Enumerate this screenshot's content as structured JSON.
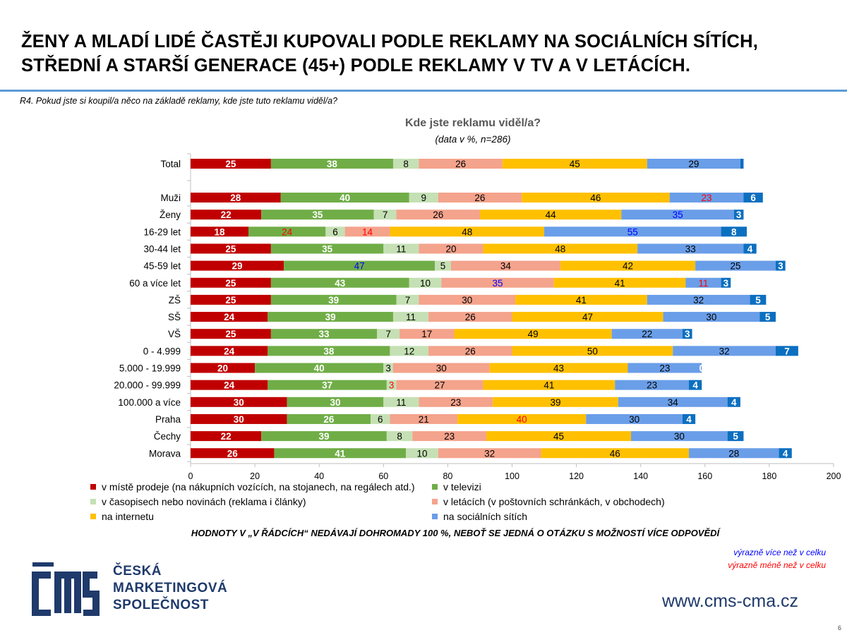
{
  "headline": {
    "line1": "ŽENY A MLADÍ LIDÉ ČASTĚJI KUPOVALI PODLE REKLAMY NA SOCIÁLNÍCH SÍTÍCH,",
    "line2": "STŘEDNÍ A STARŠÍ GENERACE (45+) PODLE REKLAMY V TV A V LETÁCÍCH."
  },
  "question": "R4. Pokud jste si koupil/a něco na základě reklamy, kde jste tuto reklamu viděl/a?",
  "chart_data": {
    "type": "bar",
    "orientation": "horizontal",
    "stacked": true,
    "title": "Kde jste reklamu viděl/a?",
    "subtitle": "(data v %, n=286)",
    "xlim": [
      0,
      200
    ],
    "x_ticks": [
      0,
      20,
      40,
      60,
      80,
      100,
      120,
      140,
      160,
      180,
      200
    ],
    "categories": [
      "Total",
      "Muži",
      "Ženy",
      "16-29 let",
      "30-44 let",
      "45-59 let",
      "60 a více let",
      "ZŠ",
      "SŠ",
      "VŠ",
      "0 - 4.999",
      "5.000 - 19.999",
      "20.000 - 99.999",
      "100.000 a více",
      "Praha",
      "Čechy",
      "Morava"
    ],
    "gap_after_index": 0,
    "series": [
      {
        "name": "v místě prodeje (na nákupních vozících, na stojanech, na regálech atd.)",
        "color": "#c00000",
        "label_color": "#ffffff",
        "values": [
          25,
          28,
          22,
          18,
          25,
          29,
          25,
          25,
          24,
          25,
          24,
          20,
          24,
          30,
          30,
          22,
          26
        ]
      },
      {
        "name": "v televizi",
        "color": "#70ad47",
        "label_color": "#ffffff",
        "values": [
          38,
          40,
          35,
          24,
          35,
          47,
          43,
          39,
          39,
          33,
          38,
          40,
          37,
          30,
          26,
          39,
          41
        ]
      },
      {
        "name": "v časopisech nebo novinách (reklama i články)",
        "color": "#c5e0b4",
        "label_color": "#000000",
        "values": [
          8,
          9,
          7,
          6,
          11,
          5,
          10,
          7,
          11,
          7,
          12,
          3,
          3,
          11,
          6,
          8,
          10
        ]
      },
      {
        "name": "v letácích (v poštovních schránkách, v obchodech)",
        "color": "#f4a38c",
        "label_color": "#000000",
        "values": [
          26,
          26,
          26,
          14,
          20,
          34,
          35,
          30,
          26,
          17,
          26,
          30,
          27,
          23,
          21,
          23,
          32
        ]
      },
      {
        "name": "na internetu",
        "color": "#ffc000",
        "label_color": "#000000",
        "values": [
          45,
          46,
          44,
          48,
          48,
          42,
          41,
          41,
          47,
          49,
          50,
          43,
          41,
          39,
          40,
          45,
          46
        ]
      },
      {
        "name": "na sociálních sítích",
        "color": "#6a9ee8",
        "label_color": "#000000",
        "values": [
          29,
          23,
          35,
          55,
          33,
          25,
          11,
          32,
          30,
          22,
          32,
          23,
          23,
          34,
          30,
          30,
          28
        ]
      },
      {
        "name": "",
        "color": "#0b6fc0",
        "label_color": "#ffffff",
        "values": [
          1,
          6,
          3,
          8,
          4,
          3,
          3,
          5,
          5,
          3,
          7,
          0,
          4,
          4,
          4,
          5,
          4
        ],
        "value_labels": [
          "",
          "6",
          "3",
          "8",
          "4",
          "3",
          "3",
          "5",
          "5",
          "3",
          "7",
          "0",
          "4",
          "4",
          "4",
          "5",
          "4"
        ]
      }
    ],
    "highlights": [
      {
        "row": 1,
        "series": 5,
        "color": "#ff0000"
      },
      {
        "row": 2,
        "series": 5,
        "color": "#0000ff"
      },
      {
        "row": 3,
        "series": 1,
        "color": "#ff0000"
      },
      {
        "row": 3,
        "series": 3,
        "color": "#ff0000"
      },
      {
        "row": 3,
        "series": 5,
        "color": "#0000ff"
      },
      {
        "row": 5,
        "series": 1,
        "color": "#0000ff"
      },
      {
        "row": 6,
        "series": 3,
        "color": "#0000ff"
      },
      {
        "row": 6,
        "series": 5,
        "color": "#ff0000"
      },
      {
        "row": 12,
        "series": 2,
        "color": "#ff0000"
      },
      {
        "row": 14,
        "series": 4,
        "color": "#ff0000"
      }
    ],
    "legend_position": "bottom",
    "grid": false
  },
  "legend": [
    {
      "label": "v místě prodeje (na nákupních vozících, na stojanech, na regálech atd.)",
      "color": "#c00000"
    },
    {
      "label": "v televizi",
      "color": "#70ad47"
    },
    {
      "label": "v časopisech nebo novinách (reklama i články)",
      "color": "#c5e0b4"
    },
    {
      "label": "v letácích (v poštovních schránkách, v obchodech)",
      "color": "#f4a38c"
    },
    {
      "label": "na internetu",
      "color": "#ffc000"
    },
    {
      "label": "na sociálních sítích",
      "color": "#6a9ee8"
    }
  ],
  "footnote": "HODNOTY V „V ŘÁDCÍCH“ NEDÁVAJÍ DOHROMADY 100 %, NEBOŤ SE JEDNÁ O OTÁZKU S MOŽNOSTÍ VÍCE ODPOVĚDÍ",
  "key": {
    "more": "výrazně více než v celku",
    "less": "výrazně méně než v celku"
  },
  "logo": {
    "line1": "ČESKÁ",
    "line2": "MARKETINGOVÁ",
    "line3": "SPOLEČNOST"
  },
  "website": "www.cms-cma.cz",
  "page_number": "6"
}
